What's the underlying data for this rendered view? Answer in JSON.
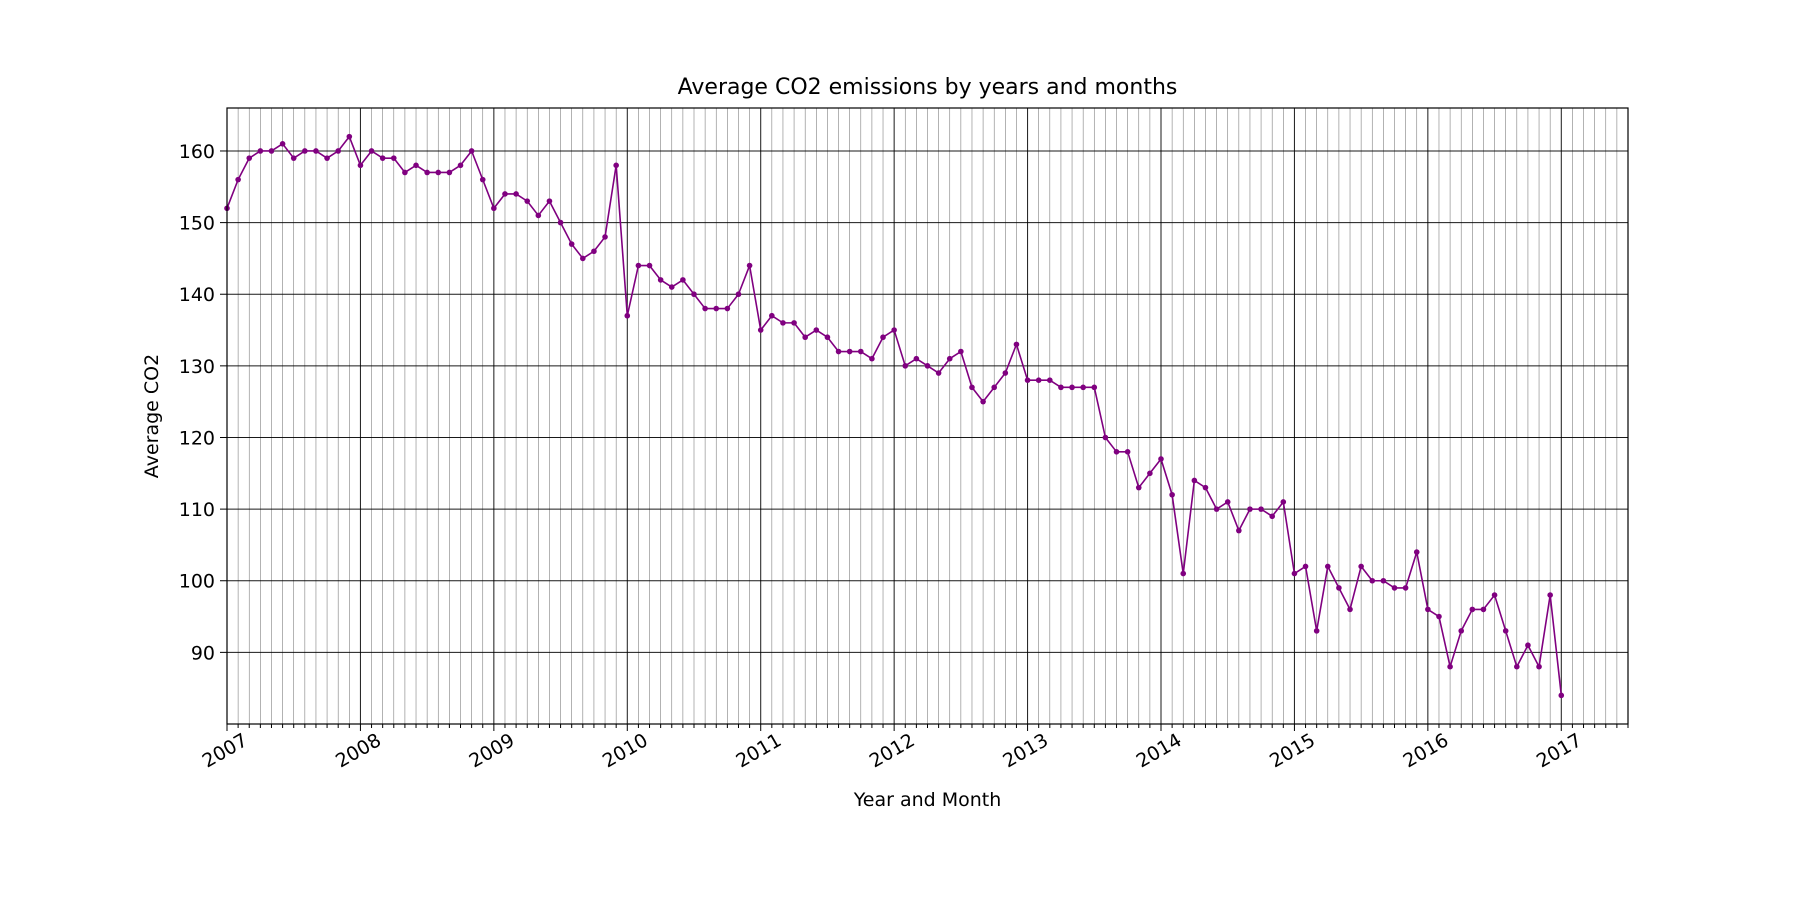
{
  "chart_data": {
    "type": "line",
    "title": "Average CO2 emissions by years and months",
    "xlabel": "Year and Month",
    "ylabel": "Average CO2",
    "x_start": "2007-01",
    "x_tick_labels": [
      "2007",
      "2008",
      "2009",
      "2010",
      "2011",
      "2012",
      "2013",
      "2014",
      "2015",
      "2016",
      "2017"
    ],
    "xlim": [
      "2007-01",
      "2017-07"
    ],
    "ylim": [
      80,
      166
    ],
    "y_ticks": [
      90,
      100,
      110,
      120,
      130,
      140,
      150,
      160
    ],
    "grid": "major and minor (monthly)",
    "line_color": "#800080",
    "marker": "dot",
    "series": [
      {
        "values": [
          152,
          156,
          159,
          160,
          160,
          161,
          159,
          160,
          160,
          159,
          160,
          162,
          158,
          160,
          159,
          159,
          157,
          158,
          157,
          157,
          157,
          158,
          160,
          156,
          152,
          154,
          154,
          153,
          151,
          153,
          150,
          147,
          145,
          146,
          148,
          158,
          137,
          144,
          144,
          142,
          141,
          142,
          140,
          138,
          138,
          138,
          140,
          144,
          135,
          137,
          136,
          136,
          134,
          135,
          134,
          132,
          132,
          132,
          131,
          134,
          135,
          130,
          131,
          130,
          129,
          131,
          132,
          127,
          125,
          127,
          129,
          133,
          128,
          128,
          128,
          127,
          127,
          127,
          127,
          120,
          118,
          118,
          113,
          115,
          117,
          112,
          101,
          114,
          113,
          110,
          111,
          107,
          110,
          110,
          109,
          111,
          101,
          102,
          93,
          102,
          99,
          96,
          102,
          100,
          100,
          99,
          99,
          104,
          96,
          95,
          88,
          93,
          96,
          96,
          98,
          93,
          88,
          91,
          88,
          98,
          84
        ]
      }
    ]
  }
}
